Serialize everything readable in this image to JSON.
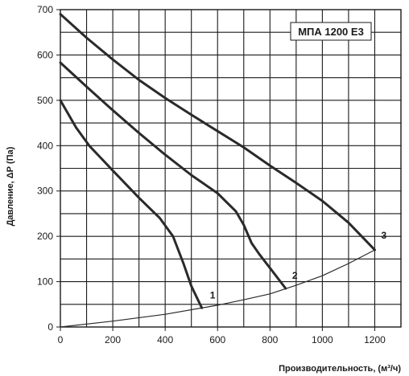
{
  "chart_data": {
    "type": "line",
    "title": "МПА 1200 Е3",
    "xlabel": "Производительность, (м³/ч)",
    "ylabel": "Давление, ΔР (Па)",
    "xlim": [
      0,
      1300
    ],
    "ylim": [
      0,
      700
    ],
    "x_ticks": [
      "0",
      "200",
      "400",
      "600",
      "800",
      "1000",
      "1200"
    ],
    "y_ticks": [
      "0",
      "100",
      "200",
      "300",
      "400",
      "500",
      "600",
      "700"
    ],
    "grid": true,
    "series": [
      {
        "name": "1",
        "style": "thick",
        "points": [
          [
            0,
            500
          ],
          [
            60,
            440
          ],
          [
            110,
            400
          ],
          [
            200,
            345
          ],
          [
            300,
            285
          ],
          [
            380,
            240
          ],
          [
            430,
            200
          ],
          [
            470,
            140
          ],
          [
            500,
            90
          ],
          [
            540,
            42
          ]
        ]
      },
      {
        "name": "2",
        "style": "thick",
        "points": [
          [
            0,
            583
          ],
          [
            100,
            530
          ],
          [
            200,
            478
          ],
          [
            300,
            428
          ],
          [
            400,
            380
          ],
          [
            500,
            335
          ],
          [
            600,
            295
          ],
          [
            670,
            255
          ],
          [
            700,
            225
          ],
          [
            730,
            185
          ],
          [
            760,
            160
          ],
          [
            800,
            130
          ],
          [
            860,
            85
          ]
        ]
      },
      {
        "name": "3",
        "style": "thick",
        "points": [
          [
            0,
            690
          ],
          [
            100,
            638
          ],
          [
            200,
            590
          ],
          [
            300,
            545
          ],
          [
            400,
            505
          ],
          [
            500,
            468
          ],
          [
            600,
            432
          ],
          [
            700,
            396
          ],
          [
            800,
            356
          ],
          [
            900,
            318
          ],
          [
            1000,
            278
          ],
          [
            1100,
            230
          ],
          [
            1200,
            170
          ]
        ]
      },
      {
        "name": "",
        "style": "thin",
        "points": [
          [
            0,
            0
          ],
          [
            200,
            13
          ],
          [
            400,
            28
          ],
          [
            600,
            48
          ],
          [
            700,
            60
          ],
          [
            800,
            73
          ],
          [
            900,
            92
          ],
          [
            1000,
            113
          ],
          [
            1100,
            140
          ],
          [
            1200,
            170
          ]
        ]
      }
    ]
  }
}
